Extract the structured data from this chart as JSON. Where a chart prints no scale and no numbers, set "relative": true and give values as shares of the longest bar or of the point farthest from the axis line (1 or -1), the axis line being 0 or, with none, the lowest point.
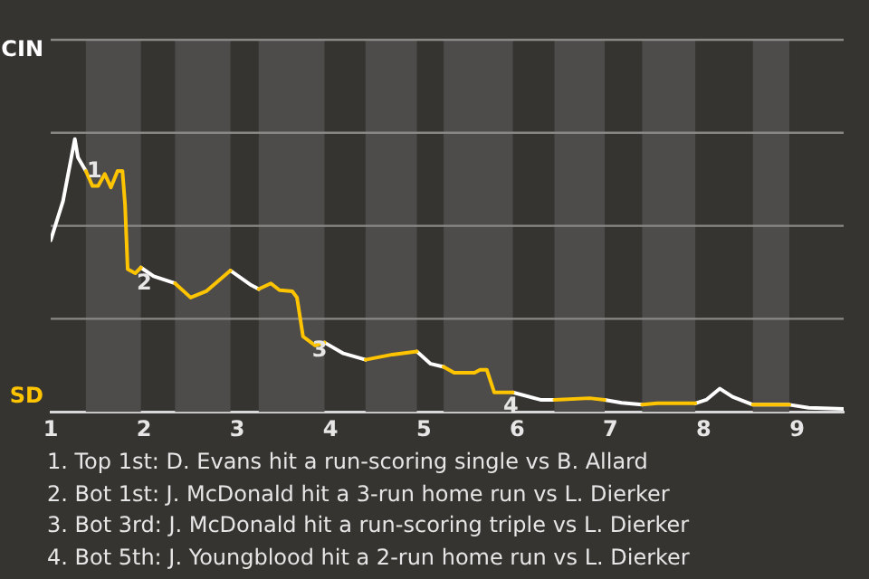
{
  "chart_data": {
    "type": "line",
    "relative": true,
    "x": [
      1,
      1.132,
      1.259,
      1.292,
      1.377,
      1.448,
      1.509,
      1.58,
      1.646,
      1.717,
      1.769,
      1.797,
      1.825,
      1.906,
      1.967,
      2.104,
      2.333,
      2.5,
      2.667,
      2.927,
      3.151,
      3.23,
      3.36,
      3.453,
      3.59,
      3.64,
      3.705,
      3.835,
      3.935,
      4.138,
      4.375,
      4.663,
      4.925,
      5.073,
      5.212,
      5.325,
      5.543,
      5.603,
      5.675,
      5.755,
      5.828,
      5.954,
      6.25,
      6.4,
      6.775,
      6.938,
      7.12,
      7.34,
      7.5,
      7.91,
      8.027,
      8.173,
      8.309,
      8.527,
      8.918,
      9.125,
      9.5
    ],
    "series": [
      {
        "name": "CIN",
        "color": "#ffffff",
        "values": [
          0.629,
          0.772,
          1,
          0.933,
          0.883,
          null,
          null,
          null,
          null,
          null,
          null,
          null,
          null,
          null,
          0.529,
          0.497,
          0.471,
          null,
          null,
          0.518,
          0.464,
          0.45,
          null,
          null,
          null,
          null,
          null,
          null,
          0.254,
          0.214,
          0.191,
          null,
          0.221,
          0.176,
          0.165,
          null,
          null,
          null,
          null,
          null,
          null,
          0.071,
          0.044,
          0.044,
          null,
          0.044,
          0.033,
          0.026,
          null,
          0.031,
          0.044,
          0.085,
          0.055,
          0.026,
          0.026,
          0.015,
          0.011
        ]
      },
      {
        "name": "SD",
        "color": "#ffc400",
        "values": [
          null,
          null,
          null,
          null,
          0.883,
          0.828,
          0.828,
          0.872,
          0.823,
          0.883,
          0.883,
          0.761,
          0.523,
          0.508,
          0.529,
          null,
          0.471,
          0.419,
          0.442,
          0.518,
          null,
          0.45,
          0.471,
          0.446,
          0.442,
          0.419,
          0.276,
          0.243,
          0.254,
          null,
          0.191,
          0.21,
          0.221,
          null,
          0.165,
          0.143,
          0.143,
          0.154,
          0.154,
          0.071,
          0.071,
          0.071,
          null,
          0.044,
          0.05,
          0.044,
          null,
          0.026,
          0.031,
          0.031,
          null,
          null,
          null,
          0.026,
          0.026,
          null,
          null
        ]
      }
    ],
    "xlim": [
      1,
      9.5
    ],
    "xticks": [
      1,
      2,
      3,
      4,
      5,
      6,
      7,
      8,
      9
    ],
    "tick_labels": "x",
    "marker": "none",
    "line_style": "solid",
    "legend": "left",
    "ref_lines": [
      {
        "axis": "y",
        "value": 0.341,
        "color": "#8a8886"
      },
      {
        "axis": "y",
        "value": 0.682,
        "color": "#8a8886"
      },
      {
        "axis": "y",
        "value": 1.023,
        "color": "#8a8886"
      },
      {
        "axis": "y",
        "value": 1.364,
        "color": "#8a8886"
      }
    ],
    "bands": [
      {
        "axis": "x",
        "from": 1.377,
        "to": 1.967,
        "color": "#4d4c4a"
      },
      {
        "axis": "x",
        "from": 2.333,
        "to": 2.927,
        "color": "#4d4c4a"
      },
      {
        "axis": "x",
        "from": 3.23,
        "to": 3.935,
        "color": "#4d4c4a"
      },
      {
        "axis": "x",
        "from": 4.375,
        "to": 4.925,
        "color": "#4d4c4a"
      },
      {
        "axis": "x",
        "from": 5.212,
        "to": 5.954,
        "color": "#4d4c4a"
      },
      {
        "axis": "x",
        "from": 6.4,
        "to": 6.938,
        "color": "#4d4c4a"
      },
      {
        "axis": "x",
        "from": 7.34,
        "to": 7.91,
        "color": "#4d4c4a"
      },
      {
        "axis": "x",
        "from": 8.527,
        "to": 8.918,
        "color": "#4d4c4a"
      }
    ],
    "annotations": [
      {
        "text": "1",
        "x": 1.292,
        "y": 0.933
      },
      {
        "text": "2",
        "x": 1.825,
        "y": 0.523
      },
      {
        "text": "3",
        "x": 3.705,
        "y": 0.276
      },
      {
        "text": "4",
        "x": 5.755,
        "y": 0.071
      },
      "1. Top 1st: D. Evans hit a run-scoring single vs B. Allard",
      "2. Bot 1st: J. McDonald hit a 3-run home run vs L. Dierker",
      "3. Bot 3rd: J. McDonald hit a run-scoring triple vs L. Dierker",
      "4. Bot 5th: J. Youngblood hit a 2-run home run vs L. Dierker"
    ]
  }
}
